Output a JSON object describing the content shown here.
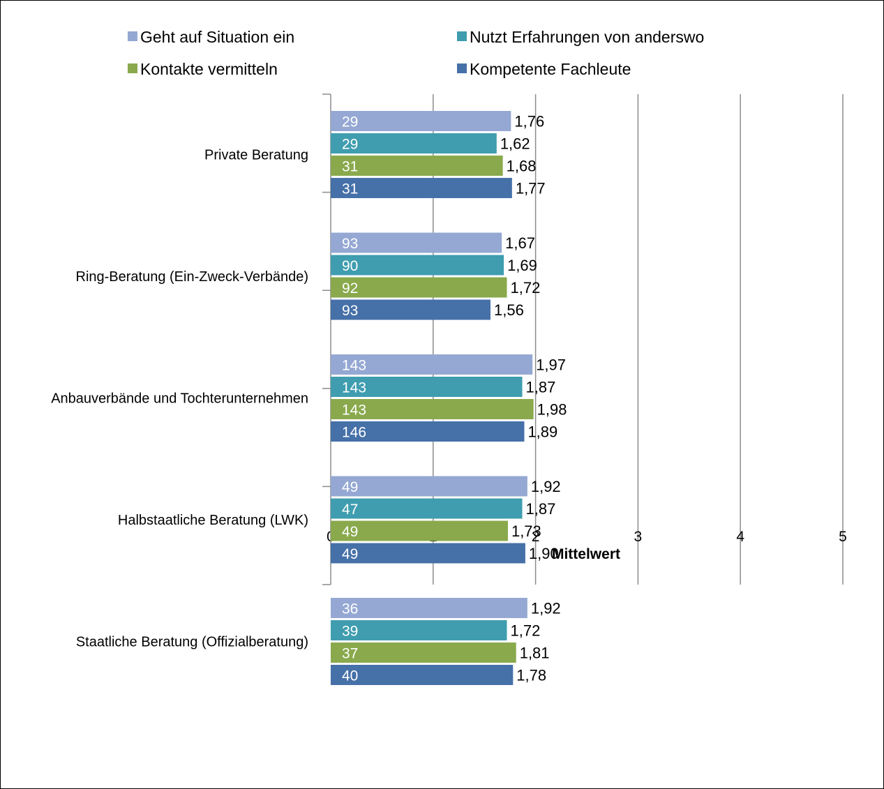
{
  "chart_data": {
    "type": "bar",
    "orientation": "horizontal",
    "title": "",
    "xlabel": "Mittelwert",
    "ylabel": "",
    "xlim": [
      0,
      5
    ],
    "xticks": [
      0,
      1,
      2,
      3,
      4,
      5
    ],
    "grid": true,
    "legend_position": "top",
    "categories": [
      "Private Beratung",
      "Ring-Beratung (Ein-Zweck-Verbände)",
      "Anbauverbände und Tochterunternehmen",
      "Halbstaatliche Beratung (LWK)",
      "Staatliche Beratung (Offizialberatung)"
    ],
    "series": [
      {
        "name": "Geht auf Situation ein",
        "color": "#95A8D3",
        "values": [
          1.76,
          1.67,
          1.97,
          1.92,
          1.92
        ],
        "labels": [
          "1,76",
          "1,67",
          "1,97",
          "1,92",
          "1,92"
        ],
        "n": [
          "29",
          "93",
          "143",
          "49",
          "36"
        ]
      },
      {
        "name": "Nutzt Erfahrungen von anderswo",
        "color": "#3F9DAF",
        "values": [
          1.62,
          1.69,
          1.87,
          1.87,
          1.72
        ],
        "labels": [
          "1,62",
          "1,69",
          "1,87",
          "1,87",
          "1,72"
        ],
        "n": [
          "29",
          "90",
          "143",
          "47",
          "39"
        ]
      },
      {
        "name": "Kontakte vermitteln",
        "color": "#89A94C",
        "values": [
          1.68,
          1.72,
          1.98,
          1.73,
          1.81
        ],
        "labels": [
          "1,68",
          "1,72",
          "1,98",
          "1,73",
          "1,81"
        ],
        "n": [
          "31",
          "92",
          "143",
          "49",
          "37"
        ]
      },
      {
        "name": "Kompetente Fachleute",
        "color": "#4670A8",
        "values": [
          1.77,
          1.56,
          1.89,
          1.9,
          1.78
        ],
        "labels": [
          "1,77",
          "1,56",
          "1,89",
          "1,90",
          "1,78"
        ],
        "n": [
          "31",
          "93",
          "146",
          "49",
          "40"
        ]
      }
    ]
  }
}
